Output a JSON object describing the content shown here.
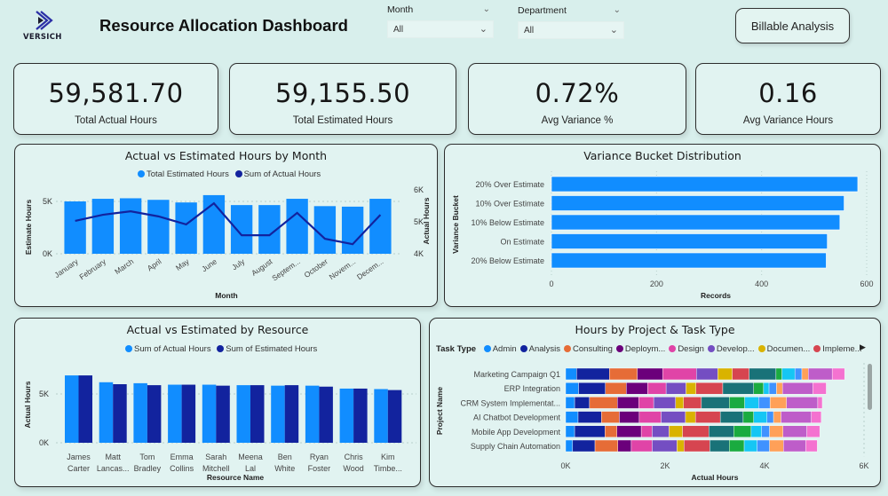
{
  "header": {
    "logo_text": "VERSICH",
    "title": "Resource Allocation Dashboard",
    "billable_button": "Billable Analysis"
  },
  "filters": [
    {
      "label": "Month",
      "value": "All"
    },
    {
      "label": "Department",
      "value": "All"
    }
  ],
  "kpis": [
    {
      "value": "59,581.70",
      "label": "Total Actual Hours"
    },
    {
      "value": "59,155.50",
      "label": "Total Estimated Hours"
    },
    {
      "value": "0.72%",
      "label": "Avg Variance %"
    },
    {
      "value": "0.16",
      "label": "Avg Variance Hours"
    }
  ],
  "colors": {
    "primary_blue": "#118dff",
    "dark_navy": "#12239e",
    "background": "#d8efec",
    "card": "#e1f3f1"
  },
  "chart_data": [
    {
      "type": "bar",
      "combo": "bar+line",
      "title": "Actual vs Estimated Hours by Month",
      "xlabel": "Month",
      "ylabel": "Estimate Hours",
      "y2label": "Actual Hours",
      "legend": [
        {
          "name": "Total Estimated Hours",
          "color": "#118dff"
        },
        {
          "name": "Sum of Actual Hours",
          "color": "#12239e"
        }
      ],
      "legend_position": "top-center",
      "categories": [
        "January",
        "February",
        "March",
        "April",
        "May",
        "June",
        "July",
        "August",
        "Septem...",
        "October",
        "Novem...",
        "Decem..."
      ],
      "series": [
        {
          "name": "Total Estimated Hours",
          "kind": "bar",
          "axis": "left",
          "values": [
            5000,
            5250,
            5300,
            5150,
            4900,
            5600,
            4650,
            4650,
            5250,
            4550,
            4500,
            5250
          ]
        },
        {
          "name": "Sum of Actual Hours",
          "kind": "line",
          "axis": "right",
          "values": [
            5030,
            5220,
            5330,
            5170,
            4920,
            5580,
            4580,
            4580,
            5280,
            4470,
            4300,
            5220
          ]
        }
      ],
      "ylim": [
        0,
        5000
      ],
      "yticks": [
        "0K",
        "5K"
      ],
      "y2lim": [
        4000,
        6000
      ],
      "y2ticks": [
        "4K",
        "5K",
        "6K"
      ],
      "grid": true
    },
    {
      "type": "bar",
      "orientation": "horizontal",
      "title": "Variance Bucket Distribution",
      "xlabel": "Records",
      "ylabel": "Variance Bucket",
      "categories": [
        "20% Over Estimate",
        "10% Over Estimate",
        "10% Below Estimate",
        "On Estimate",
        "20% Below Estimate"
      ],
      "values": [
        583,
        557,
        549,
        525,
        523
      ],
      "xlim": [
        0,
        600
      ],
      "xticks": [
        "0",
        "200",
        "400",
        "600"
      ],
      "grid": true
    },
    {
      "type": "bar",
      "title": "Actual vs Estimated by Resource",
      "xlabel": "Resource Name",
      "ylabel": "Actual Hours",
      "legend": [
        {
          "name": "Sum of Actual Hours",
          "color": "#118dff"
        },
        {
          "name": "Sum of Estimated Hours",
          "color": "#12239e"
        }
      ],
      "legend_position": "top-center",
      "categories": [
        "James Carter",
        "Matt Lancas...",
        "Tom Bradley",
        "Emma Collins",
        "Sarah Mitchell",
        "Meena Lal",
        "Ben White",
        "Ryan Foster",
        "Chris Wood",
        "Kim Timbe..."
      ],
      "series": [
        {
          "name": "Sum of Actual Hours",
          "values": [
            6900,
            6200,
            6100,
            5950,
            5950,
            5900,
            5850,
            5850,
            5550,
            5500
          ]
        },
        {
          "name": "Sum of Estimated Hours",
          "values": [
            6900,
            6000,
            5900,
            5950,
            5850,
            5900,
            5900,
            5750,
            5550,
            5400
          ]
        }
      ],
      "ylim": [
        0,
        7000
      ],
      "yticks": [
        "0K",
        "5K"
      ],
      "grid": true
    },
    {
      "type": "bar",
      "orientation": "horizontal",
      "stacked": true,
      "title": "Hours by Project & Task Type",
      "xlabel": "Actual Hours",
      "ylabel": "Project Name",
      "legend_title": "Task Type",
      "legend": [
        {
          "name": "Admin",
          "color": "#118dff"
        },
        {
          "name": "Analysis",
          "color": "#12239e"
        },
        {
          "name": "Consulting",
          "color": "#e66c37"
        },
        {
          "name": "Deploym...",
          "color": "#6b007b"
        },
        {
          "name": "Design",
          "color": "#e044a7"
        },
        {
          "name": "Develop...",
          "color": "#744ec2"
        },
        {
          "name": "Documen...",
          "color": "#d9b300"
        },
        {
          "name": "Impleme...",
          "color": "#d64550"
        }
      ],
      "segment_colors": [
        "#118dff",
        "#12239e",
        "#e66c37",
        "#6b007b",
        "#e044a7",
        "#744ec2",
        "#d9b300",
        "#d64550",
        "#197278",
        "#1aab40",
        "#15c6f4",
        "#4092ff",
        "#ffa058",
        "#be5dc9",
        "#f472d0"
      ],
      "categories": [
        "Marketing Campaign Q1",
        "ERP Integration",
        "CRM System Implementat...",
        "AI Chatbot Development",
        "Mobile App Development",
        "Supply Chain Automation"
      ],
      "segments": [
        [
          220,
          660,
          560,
          510,
          680,
          430,
          290,
          340,
          540,
          120,
          260,
          140,
          130,
          480,
          250
        ],
        [
          260,
          540,
          420,
          430,
          370,
          400,
          200,
          540,
          620,
          200,
          110,
          150,
          120,
          610,
          270
        ],
        [
          180,
          300,
          560,
          430,
          300,
          440,
          160,
          360,
          560,
          310,
          280,
          230,
          330,
          630,
          90
        ],
        [
          250,
          470,
          360,
          400,
          440,
          490,
          200,
          500,
          460,
          210,
          270,
          130,
          150,
          610,
          200
        ],
        [
          180,
          610,
          240,
          490,
          220,
          340,
          270,
          530,
          500,
          350,
          210,
          160,
          270,
          480,
          260
        ],
        [
          140,
          450,
          460,
          270,
          420,
          500,
          140,
          520,
          390,
          300,
          260,
          250,
          280,
          450,
          230
        ]
      ],
      "xlim": [
        0,
        6000
      ],
      "xticks": [
        "0K",
        "2K",
        "4K",
        "6K"
      ],
      "grid": true
    }
  ]
}
